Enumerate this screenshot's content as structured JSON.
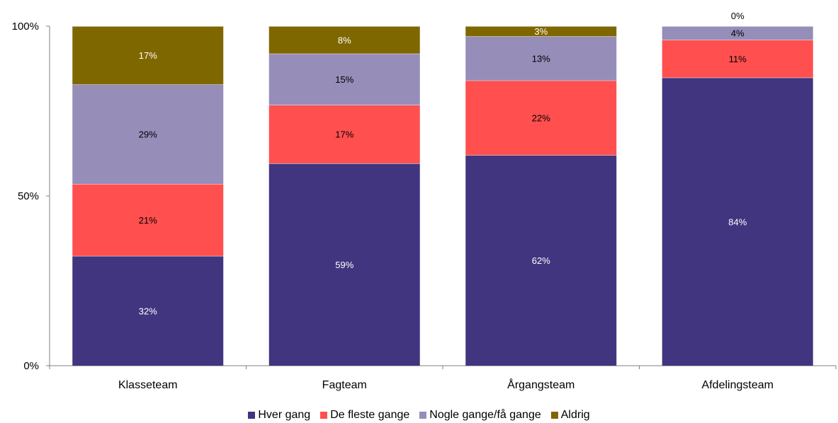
{
  "chart_data": {
    "type": "bar",
    "stacked": true,
    "percent_stacked": true,
    "categories": [
      "Klasseteam",
      "Fagteam",
      "Årgangsteam",
      "Afdelingsteam"
    ],
    "series": [
      {
        "name": "Hver gang",
        "color": "#41357f",
        "values": [
          32,
          59,
          62,
          84
        ],
        "labels": [
          "32%",
          "59%",
          "62%",
          "84%"
        ]
      },
      {
        "name": "De fleste gange",
        "color": "#ff4f4f",
        "values": [
          21,
          17,
          22,
          11
        ],
        "labels": [
          "21%",
          "17%",
          "22%",
          "11%"
        ]
      },
      {
        "name": "Nogle gange/få gange",
        "color": "#968db9",
        "values": [
          29,
          15,
          13,
          4
        ],
        "labels": [
          "29%",
          "15%",
          "13%",
          "4%"
        ]
      },
      {
        "name": "Aldrig",
        "color": "#7f6700",
        "values": [
          17,
          8,
          3,
          0
        ],
        "labels": [
          "17%",
          "8%",
          "3%",
          "0%"
        ]
      }
    ],
    "yticks": [
      "0%",
      "50%",
      "100%"
    ],
    "ylim": [
      0,
      100
    ],
    "legend_position": "bottom",
    "grid": false
  }
}
